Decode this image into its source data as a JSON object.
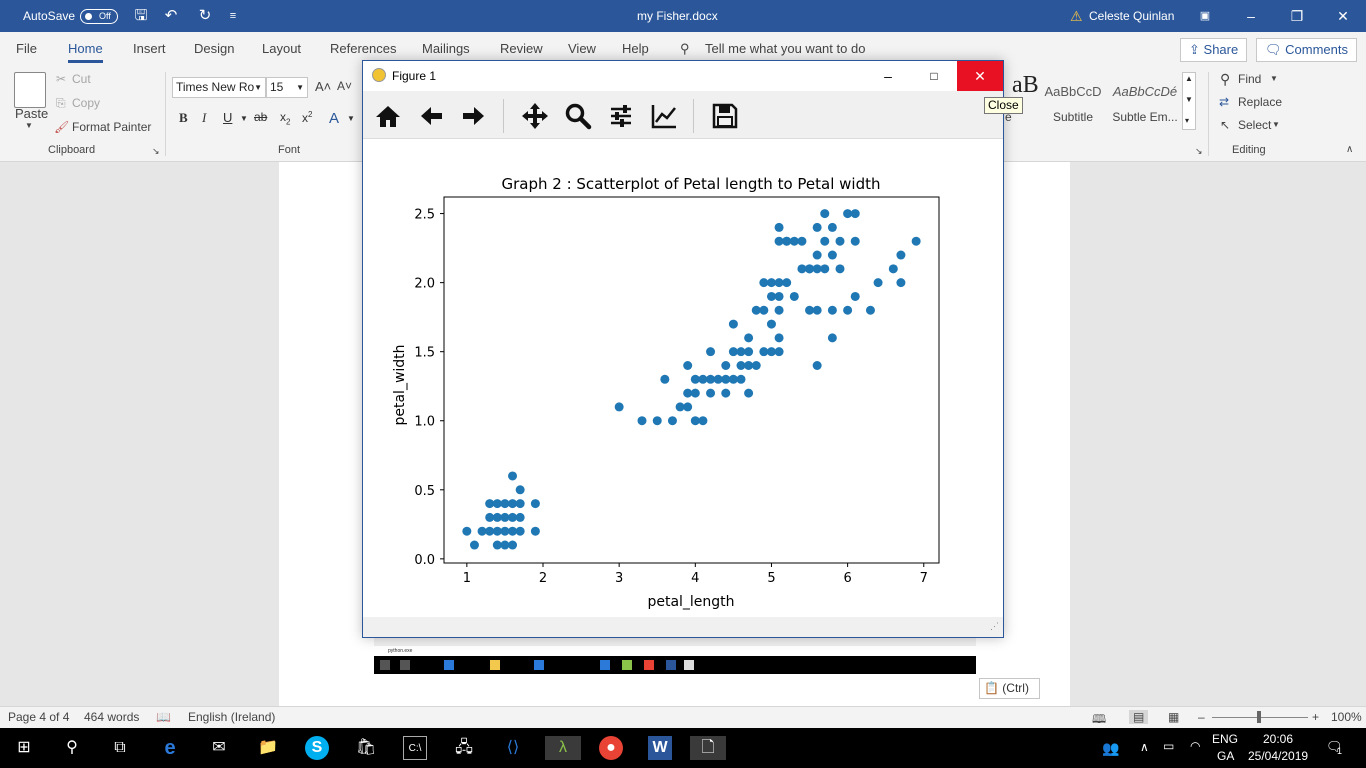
{
  "titlebar": {
    "autosave_label": "AutoSave",
    "autosave_state": "Off",
    "doc_title": "my Fisher.docx",
    "user_name": "Celeste Quinlan"
  },
  "tabs": [
    "File",
    "Home",
    "Insert",
    "Design",
    "Layout",
    "References",
    "Mailings",
    "Review",
    "View",
    "Help"
  ],
  "tell_me": "Tell me what you want to do",
  "share_label": "Share",
  "comments_label": "Comments",
  "clipboard": {
    "paste": "Paste",
    "cut": "Cut",
    "copy": "Copy",
    "format_painter": "Format Painter",
    "group_label": "Clipboard"
  },
  "font": {
    "family": "Times New Ro",
    "size": "15",
    "group_label": "Font"
  },
  "styles": [
    {
      "sample": "AaBbCcD",
      "name": "Subtitle"
    },
    {
      "sample": "AaBbCcDé",
      "name": "Subtle Em..."
    }
  ],
  "editing": {
    "find": "Find",
    "replace": "Replace",
    "select": "Select",
    "group_label": "Editing"
  },
  "figure_window": {
    "title": "Figure 1",
    "close_tooltip": "Close"
  },
  "embedded": {
    "python_label": "python.exe"
  },
  "ctrl_paste": "(Ctrl)",
  "statusbar": {
    "page": "Page 4 of 4",
    "words": "464 words",
    "language": "English (Ireland)",
    "zoom": "100%"
  },
  "taskbar": {
    "lang_top": "ENG",
    "lang_bottom": "GA",
    "time": "20:06",
    "date": "25/04/2019",
    "notifications": "1"
  },
  "colors": {
    "word_blue": "#2b579a",
    "point_color": "#1f77b4",
    "close_red": "#e81123"
  },
  "chart_data": {
    "type": "scatter",
    "title": "Graph 2 : Scatterplot of Petal length to Petal width",
    "xlabel": "petal_length",
    "ylabel": "petal_width",
    "xlim": [
      0.7,
      7.2
    ],
    "ylim": [
      -0.03,
      2.62
    ],
    "xticks": [
      1,
      2,
      3,
      4,
      5,
      6,
      7
    ],
    "yticks": [
      0.0,
      0.5,
      1.0,
      1.5,
      2.0,
      2.5
    ],
    "ytick_labels": [
      "0.0",
      "0.5",
      "1.0",
      "1.5",
      "2.0",
      "2.5"
    ],
    "grid": false,
    "points": [
      [
        1.0,
        0.2
      ],
      [
        1.1,
        0.1
      ],
      [
        1.2,
        0.2
      ],
      [
        1.3,
        0.2
      ],
      [
        1.3,
        0.3
      ],
      [
        1.3,
        0.4
      ],
      [
        1.4,
        0.2
      ],
      [
        1.4,
        0.3
      ],
      [
        1.4,
        0.1
      ],
      [
        1.5,
        0.2
      ],
      [
        1.5,
        0.1
      ],
      [
        1.5,
        0.4
      ],
      [
        1.5,
        0.3
      ],
      [
        1.6,
        0.2
      ],
      [
        1.6,
        0.4
      ],
      [
        1.6,
        0.6
      ],
      [
        1.6,
        0.1
      ],
      [
        1.7,
        0.2
      ],
      [
        1.7,
        0.4
      ],
      [
        1.7,
        0.5
      ],
      [
        1.7,
        0.3
      ],
      [
        1.9,
        0.2
      ],
      [
        1.9,
        0.4
      ],
      [
        1.6,
        0.3
      ],
      [
        1.4,
        0.4
      ],
      [
        3.0,
        1.1
      ],
      [
        3.3,
        1.0
      ],
      [
        3.5,
        1.0
      ],
      [
        3.6,
        1.3
      ],
      [
        3.7,
        1.0
      ],
      [
        3.8,
        1.1
      ],
      [
        3.9,
        1.1
      ],
      [
        3.9,
        1.2
      ],
      [
        3.9,
        1.4
      ],
      [
        4.0,
        1.0
      ],
      [
        4.0,
        1.2
      ],
      [
        4.0,
        1.3
      ],
      [
        4.1,
        1.0
      ],
      [
        4.1,
        1.3
      ],
      [
        4.2,
        1.2
      ],
      [
        4.2,
        1.3
      ],
      [
        4.2,
        1.5
      ],
      [
        4.3,
        1.3
      ],
      [
        4.4,
        1.2
      ],
      [
        4.4,
        1.3
      ],
      [
        4.4,
        1.4
      ],
      [
        4.5,
        1.3
      ],
      [
        4.5,
        1.5
      ],
      [
        4.5,
        1.7
      ],
      [
        4.6,
        1.3
      ],
      [
        4.6,
        1.4
      ],
      [
        4.6,
        1.5
      ],
      [
        4.7,
        1.2
      ],
      [
        4.7,
        1.4
      ],
      [
        4.7,
        1.5
      ],
      [
        4.7,
        1.6
      ],
      [
        4.8,
        1.4
      ],
      [
        4.8,
        1.8
      ],
      [
        4.9,
        1.5
      ],
      [
        4.9,
        1.8
      ],
      [
        4.9,
        2.0
      ],
      [
        5.0,
        1.5
      ],
      [
        5.0,
        1.7
      ],
      [
        5.0,
        1.9
      ],
      [
        5.0,
        2.0
      ],
      [
        5.1,
        1.5
      ],
      [
        5.1,
        1.6
      ],
      [
        5.1,
        1.8
      ],
      [
        5.1,
        1.9
      ],
      [
        5.1,
        2.0
      ],
      [
        5.1,
        2.3
      ],
      [
        5.1,
        2.4
      ],
      [
        5.2,
        2.0
      ],
      [
        5.2,
        2.3
      ],
      [
        5.3,
        1.9
      ],
      [
        5.3,
        2.3
      ],
      [
        5.4,
        2.1
      ],
      [
        5.4,
        2.3
      ],
      [
        5.5,
        1.8
      ],
      [
        5.5,
        2.1
      ],
      [
        5.6,
        1.4
      ],
      [
        5.6,
        1.8
      ],
      [
        5.6,
        2.1
      ],
      [
        5.6,
        2.2
      ],
      [
        5.6,
        2.4
      ],
      [
        5.7,
        2.1
      ],
      [
        5.7,
        2.3
      ],
      [
        5.7,
        2.5
      ],
      [
        5.8,
        1.6
      ],
      [
        5.8,
        1.8
      ],
      [
        5.8,
        2.2
      ],
      [
        5.9,
        2.1
      ],
      [
        5.9,
        2.3
      ],
      [
        6.0,
        1.8
      ],
      [
        6.0,
        2.5
      ],
      [
        6.1,
        1.9
      ],
      [
        6.1,
        2.3
      ],
      [
        6.1,
        2.5
      ],
      [
        6.3,
        1.8
      ],
      [
        6.4,
        2.0
      ],
      [
        6.6,
        2.1
      ],
      [
        6.7,
        2.0
      ],
      [
        6.7,
        2.2
      ],
      [
        6.9,
        2.3
      ],
      [
        5.5,
        2.1
      ],
      [
        5.2,
        2.3
      ],
      [
        5.8,
        2.4
      ]
    ]
  }
}
